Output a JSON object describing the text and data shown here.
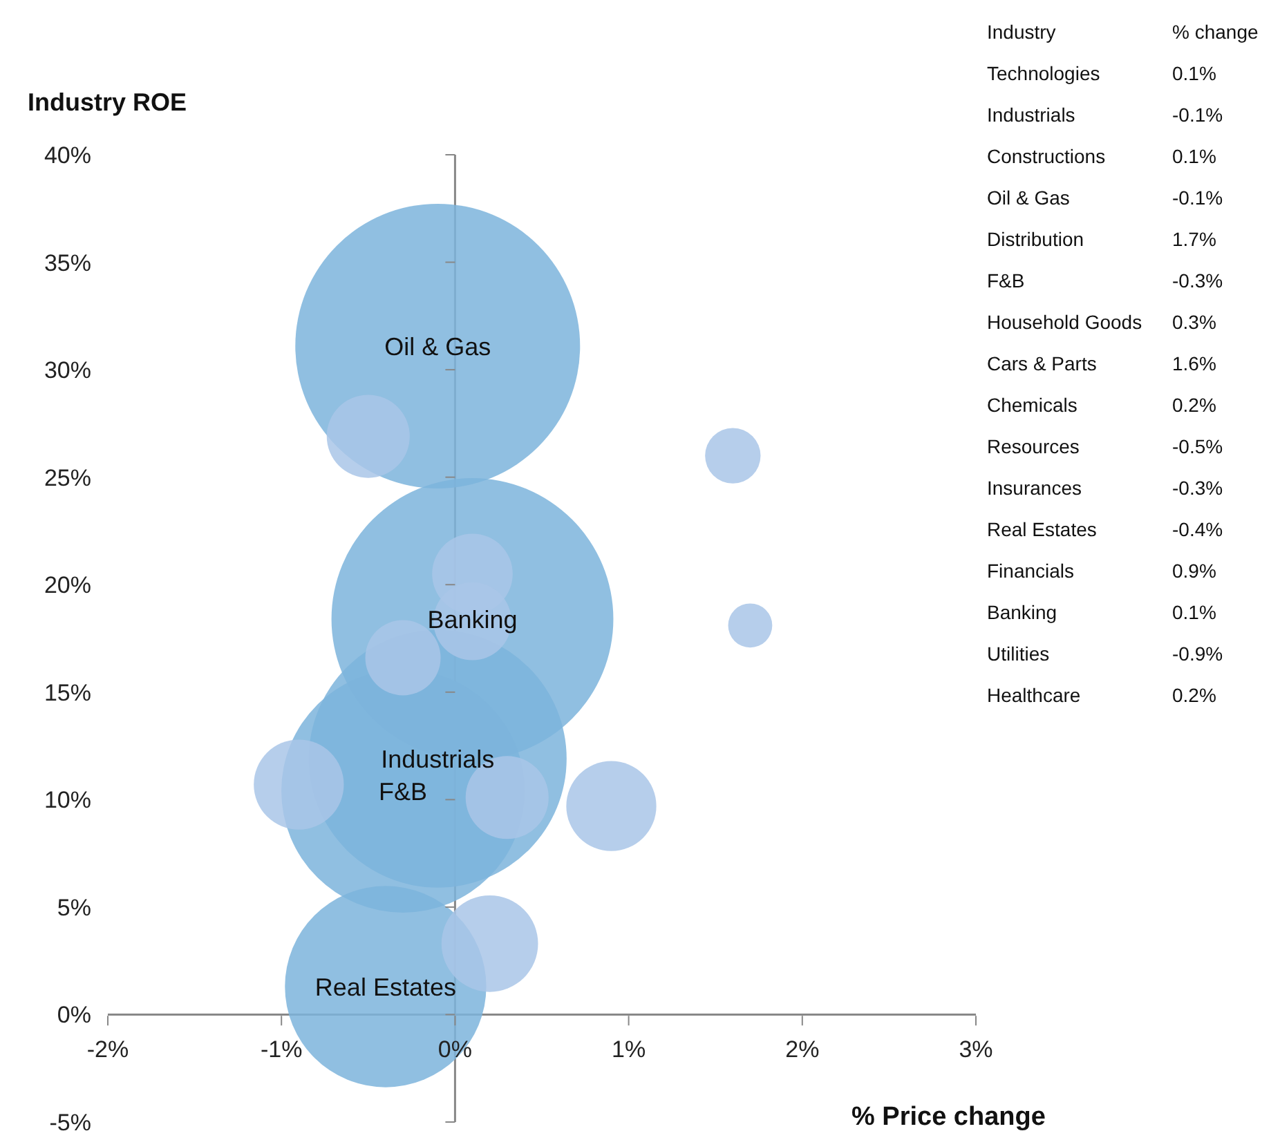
{
  "chart_data": [
    {
      "type": "bubble",
      "ylabel": "Industry ROE",
      "xlabel": "% Price change",
      "annotations": [
        {
          "text": "Oil & Gas",
          "x": -0.1,
          "y": 31.1
        },
        {
          "text": "Banking",
          "x": 0.1,
          "y": 18.4
        },
        {
          "text": "Industrials",
          "x": -0.1,
          "y": 11.9
        },
        {
          "text": "F&B",
          "x": -0.3,
          "y": 10.4
        },
        {
          "text": "Real Estates",
          "x": -0.4,
          "y": 1.3
        }
      ],
      "x": [
        0.1,
        -0.1,
        0.1,
        -0.1,
        1.7,
        -0.3,
        0.3,
        1.6,
        0.2,
        -0.5,
        -0.3,
        -0.4,
        0.9,
        0.1,
        -0.9
      ],
      "values": [
        20.5,
        11.9,
        18.3,
        31.1,
        18.1,
        10.4,
        10.1,
        26,
        3.3,
        26.9,
        16.6,
        1.3,
        9.7,
        18.4,
        10.7
      ],
      "sizes": [
        0.08,
        0.82,
        0.075,
        1,
        0.024,
        0.73,
        0.085,
        0.038,
        0.115,
        0.085,
        0.07,
        0.5,
        0.1,
        0.98,
        0.1
      ],
      "colors": [
        "#a9c5e8",
        "#7db4dc",
        "#a9c5e8",
        "#7db4dc",
        "#a9c5e8",
        "#7db4dc",
        "#a9c5e8",
        "#a9c5e8",
        "#a9c5e8",
        "#a9c5e8",
        "#a9c5e8",
        "#7db4dc",
        "#a9c5e8",
        "#7db4dc",
        "#a9c5e8"
      ],
      "xlim": [
        -2,
        3
      ],
      "xticks": [
        {
          "value": -2,
          "label": "-2%"
        },
        {
          "value": -1,
          "label": "-1%"
        },
        {
          "value": 0,
          "label": "0%"
        },
        {
          "value": 1,
          "label": "1%"
        },
        {
          "value": 2,
          "label": "2%"
        },
        {
          "value": 3,
          "label": "3%"
        }
      ],
      "ylim": [
        -5,
        40
      ],
      "yticks": [
        {
          "value": -5,
          "label": "-5%"
        },
        {
          "value": 0,
          "label": "0%"
        },
        {
          "value": 5,
          "label": "5%"
        },
        {
          "value": 10,
          "label": "10%"
        },
        {
          "value": 15,
          "label": "15%"
        },
        {
          "value": 20,
          "label": "20%"
        },
        {
          "value": 25,
          "label": "25%"
        },
        {
          "value": 30,
          "label": "30%"
        },
        {
          "value": 35,
          "label": "35%"
        },
        {
          "value": 40,
          "label": "40%"
        }
      ]
    },
    {
      "type": "other",
      "annotations": [
        "Industry",
        "% change"
      ],
      "categories": [
        "Technologies",
        "Industrials",
        "Constructions",
        "Oil & Gas",
        "Distribution",
        "F&B",
        "Household Goods",
        "Cars & Parts",
        "Chemicals",
        "Resources",
        "Insurances",
        "Real Estates",
        "Financials",
        "Banking",
        "Utilities",
        "Healthcare"
      ],
      "value_labels": [
        "0.1%",
        "-0.1%",
        "0.1%",
        "-0.1%",
        "1.7%",
        "-0.3%",
        "0.3%",
        "1.6%",
        "0.2%",
        "-0.5%",
        "-0.3%",
        "-0.4%",
        "0.9%",
        "0.1%",
        "-0.9%",
        "0.2%"
      ]
    }
  ]
}
